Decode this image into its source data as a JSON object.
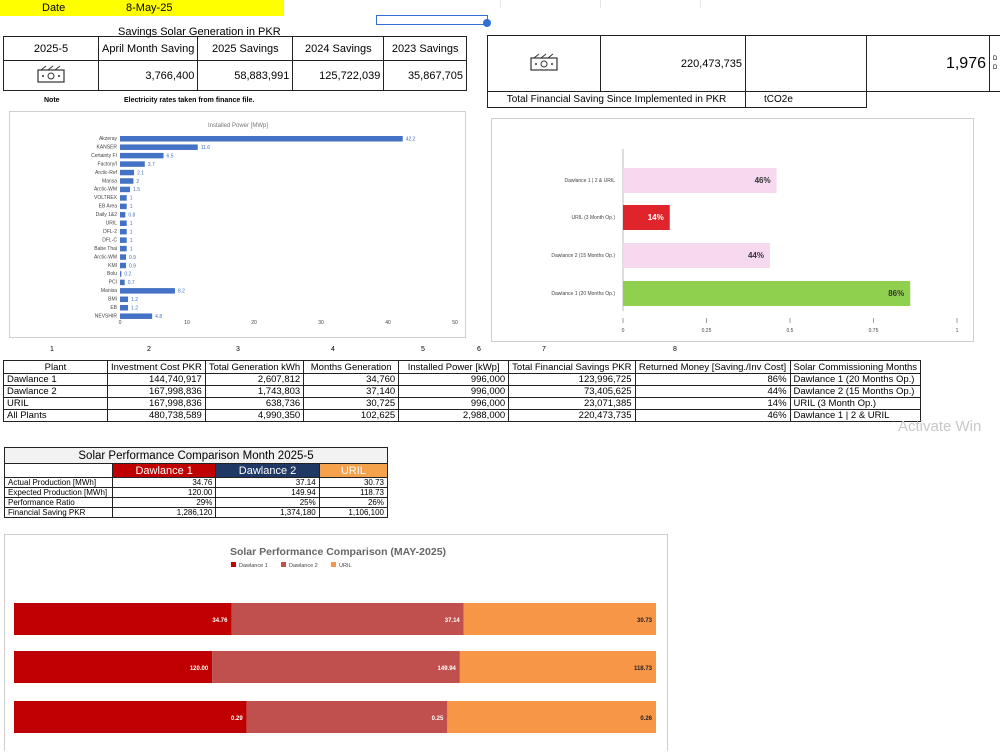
{
  "date_row": {
    "label": "Date",
    "value": "8-May-25"
  },
  "top_table": {
    "title": "Savings Solar Generation in PKR",
    "headers": [
      "2025-5",
      "April Month Saving",
      "2025 Savings",
      "2024 Savings",
      "2023 Savings"
    ],
    "values": [
      "3,766,400",
      "58,883,991",
      "125,722,039",
      "35,867,705"
    ],
    "note_label": "Note",
    "note_text": "Electricity rates taken from finance file."
  },
  "summary_table": {
    "total_saving": "220,473,735",
    "total_saving_label": "Total Financial Saving Since Implemented in PKR",
    "co2_value": "1,976",
    "co2_label": "tCO2e",
    "cut_text": [
      "D",
      "D"
    ]
  },
  "power_chart": {
    "title": "Installed Power [MWp]",
    "bar_color": "#4472c4",
    "categories": [
      "Akzeray",
      "KANSER",
      "Certainty FI",
      "Factory/I",
      "Arctic-Ref",
      "Mansa",
      "Arctic-WM",
      "VOLTREX",
      "EB Area",
      "Daily 1&2",
      "URIL",
      "DFL-2",
      "DFL-C",
      "Babe Thai",
      "Arctic-WM",
      "KMI",
      "Bolu",
      "PCI",
      "Manisa",
      "BMI",
      "EB",
      "NEVSHIR"
    ],
    "values": [
      42.2,
      11.6,
      6.5,
      3.7,
      2.1,
      2.0,
      1.5,
      1.0,
      1.0,
      0.8,
      1.0,
      1.0,
      1.0,
      1.0,
      0.9,
      0.9,
      0.2,
      0.7,
      8.2,
      1.2,
      1.2,
      4.8
    ],
    "axis_ticks": [
      "0",
      "10",
      "20",
      "30",
      "40",
      "50"
    ],
    "xlim": [
      0,
      50
    ]
  },
  "returned_chart": {
    "categories": [
      "Dawlance 1 | 2 &  URIL",
      "URIL (3 Month Op.)",
      "Dawlance 2 (15 Months Op.)",
      "Dawlance 1 (20 Months Op.)"
    ],
    "values": [
      0.46,
      0.14,
      0.44,
      0.86
    ],
    "labels": [
      "46%",
      "14%",
      "44%",
      "86%"
    ],
    "colors": [
      "#f7d9ef",
      "#e0242b",
      "#f7d9ef",
      "#8fd14f"
    ],
    "axis_ticks": [
      "0",
      "0.25",
      "0.5",
      "0.75",
      "1"
    ],
    "xlim": [
      0,
      1
    ]
  },
  "col_numbers": [
    "1",
    "2",
    "3",
    "4",
    "5",
    "6",
    "7",
    "8"
  ],
  "plant_table": {
    "headers": [
      "Plant",
      "Investment Cost PKR",
      "Total Generation kWh",
      "Months Generation",
      "Installed Power [kWp]",
      "Total Financial Savings PKR",
      "Returned Money [Saving./Inv Cost]",
      "Solar Commissioning Months"
    ],
    "rows": [
      [
        "Dawlance 1",
        "144,740,917",
        "2,607,812",
        "34,760",
        "996,000",
        "123,996,725",
        "86%",
        "Dawlance 1 (20 Months Op.)"
      ],
      [
        "Dawlance 2",
        "167,998,836",
        "1,743,803",
        "37,140",
        "996,000",
        "73,405,625",
        "44%",
        "Dawlance 2 (15 Months Op.)"
      ],
      [
        "URIL",
        "167,998,836",
        "638,736",
        "30,725",
        "996,000",
        "23,071,385",
        "14%",
        "URIL (3 Month Op.)"
      ],
      [
        "All Plants",
        "480,738,589",
        "4,990,350",
        "102,625",
        "2,988,000",
        "220,473,735",
        "46%",
        "Dawlance 1 | 2 &  URIL"
      ]
    ]
  },
  "watermark": "Activate Win",
  "perf_table": {
    "title": "Solar Performance Comparison Month 2025-5",
    "columns": [
      "Dawlance 1",
      "Dawlance 2",
      "URIL"
    ],
    "column_colors": [
      "#c00000",
      "#1f3864",
      "#f4a24b"
    ],
    "rows": [
      {
        "label": "Actual Production [MWh]",
        "values": [
          "34.76",
          "37.14",
          "30.73"
        ]
      },
      {
        "label": "Expected Production [MWh]",
        "values": [
          "120.00",
          "149.94",
          "118.73"
        ]
      },
      {
        "label": "Performance Ratio",
        "values": [
          "29%",
          "25%",
          "26%"
        ]
      },
      {
        "label": "Financial Saving PKR",
        "values": [
          "1,286,120",
          "1,374,180",
          "1,106,100"
        ]
      }
    ]
  },
  "chart_data": {
    "type": "bar",
    "stacked": "100%",
    "orientation": "horizontal",
    "title": "Solar Performance Comparison (MAY-2025)",
    "legend_position": "top",
    "series": [
      {
        "name": "Dawlance 1",
        "color": "#c00000",
        "values": [
          34.76,
          120.0,
          0.29
        ],
        "labels": [
          "34.76",
          "120.00",
          "0.29"
        ]
      },
      {
        "name": "Dawlance 2",
        "color": "#c0504d",
        "values": [
          37.14,
          149.94,
          0.25
        ],
        "labels": [
          "37.14",
          "149.94",
          "0.25"
        ]
      },
      {
        "name": "URIL",
        "color": "#f79646",
        "values": [
          30.73,
          118.73,
          0.26
        ],
        "labels": [
          "30.73",
          "118.73",
          "0.26"
        ]
      }
    ]
  }
}
